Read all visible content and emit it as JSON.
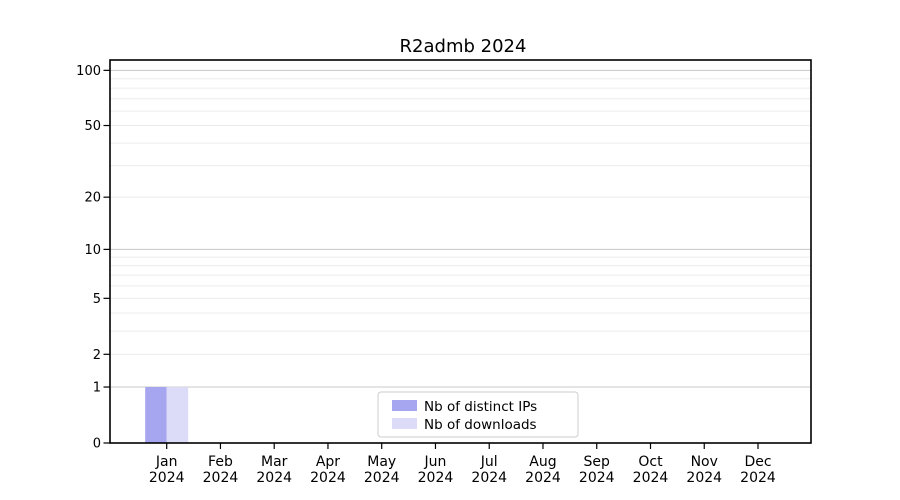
{
  "chart_data": {
    "type": "bar",
    "title": "R2admb 2024",
    "categories": [
      [
        "Jan",
        "2024"
      ],
      [
        "Feb",
        "2024"
      ],
      [
        "Mar",
        "2024"
      ],
      [
        "Apr",
        "2024"
      ],
      [
        "May",
        "2024"
      ],
      [
        "Jun",
        "2024"
      ],
      [
        "Jul",
        "2024"
      ],
      [
        "Aug",
        "2024"
      ],
      [
        "Sep",
        "2024"
      ],
      [
        "Oct",
        "2024"
      ],
      [
        "Nov",
        "2024"
      ],
      [
        "Dec",
        "2024"
      ]
    ],
    "series": [
      {
        "name": "Nb of distinct IPs",
        "color": "#a5a5f0",
        "values": [
          1,
          0,
          0,
          0,
          0,
          0,
          0,
          0,
          0,
          0,
          0,
          0
        ]
      },
      {
        "name": "Nb of downloads",
        "color": "#dcdcf8",
        "values": [
          1,
          0,
          0,
          0,
          0,
          0,
          0,
          0,
          0,
          0,
          0,
          0
        ]
      }
    ],
    "xlabel": "",
    "ylabel": "",
    "y_axis": {
      "scale": "log1p",
      "tick_values": [
        0,
        1,
        2,
        5,
        10,
        20,
        50,
        100
      ],
      "minor_grid_values": [
        3,
        4,
        6,
        7,
        8,
        9,
        30,
        40,
        60,
        70,
        80,
        90
      ],
      "decade_grid_values": [
        1,
        10,
        100
      ],
      "max_value_log1p": 2.06
    },
    "legend": {
      "position": "bottom-center"
    },
    "grid": true,
    "colors": {
      "grid_major": "#c8c8c8",
      "grid_minor": "#ececec",
      "axis": "#000000",
      "background": "#ffffff"
    }
  }
}
